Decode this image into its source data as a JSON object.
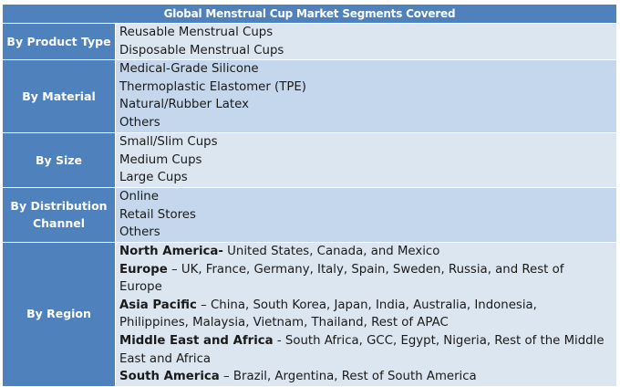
{
  "title": "Global Menstrual Cup Market Segments Covered",
  "segments": [
    {
      "category": "By Product Type",
      "items": [
        "Reusable Menstrual Cups",
        "Disposable Menstrual Cups"
      ]
    },
    {
      "category": "By Material",
      "items": [
        "Medical-Grade Silicone",
        "Thermoplastic Elastomer (TPE)",
        "Natural/Rubber Latex",
        "Others"
      ]
    },
    {
      "category": "By Size",
      "items": [
        "Small/Slim Cups",
        "Medium Cups",
        "Large Cups"
      ]
    },
    {
      "category_line1": "By Distribution",
      "category_line2": "Channel",
      "items": [
        "Online",
        "Retail Stores",
        "Others"
      ]
    },
    {
      "category": "By Region",
      "regions": [
        {
          "name": "North America-",
          "list": " United States, Canada, and Mexico"
        },
        {
          "name": "Europe",
          "list": " – UK, France, Germany, Italy, Spain, Sweden, Russia, and Rest of Europe"
        },
        {
          "name": "Asia Pacific",
          "list": " – China, South Korea, Japan, India, Australia, Indonesia, Philippines, Malaysia, Vietnam, Thailand, Rest of APAC"
        },
        {
          "name": "Middle East and Africa",
          "list": " - South Africa, GCC, Egypt, Nigeria, Rest of the Middle East and Africa"
        },
        {
          "name": "South America",
          "list": " – Brazil, Argentina, Rest of South America"
        }
      ]
    }
  ],
  "colors": {
    "header_bg": "#4f81bd",
    "row_light": "#dce6f1",
    "row_mid": "#c5d7ec"
  }
}
